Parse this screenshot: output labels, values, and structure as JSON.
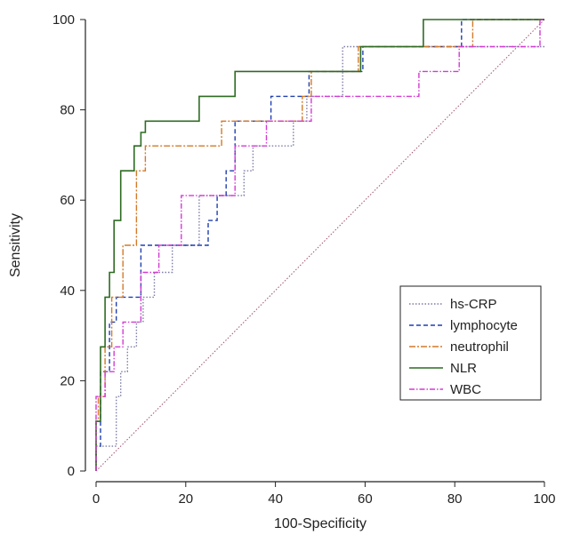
{
  "chart_data": {
    "type": "line",
    "title": "",
    "xlabel": "100-Specificity",
    "ylabel": "Sensitivity",
    "xlim": [
      0,
      100
    ],
    "ylim": [
      0,
      100
    ],
    "xticks": [
      "0",
      "20",
      "40",
      "60",
      "80",
      "100"
    ],
    "yticks": [
      "0",
      "20",
      "40",
      "60",
      "80",
      "100"
    ],
    "grid": false,
    "legend_position": "bottom-right",
    "reference_line": {
      "x": [
        0,
        100
      ],
      "y": [
        0,
        100
      ],
      "color": "#a0506e"
    },
    "series": [
      {
        "name": "hs-CRP",
        "color": "#7c7ca8",
        "dash": "1.5,2",
        "x": [
          0,
          0,
          1.5,
          1.5,
          3.5,
          3.5,
          4.5,
          4.5,
          5.5,
          5.5,
          7,
          7,
          9,
          9,
          10.5,
          10.5,
          13,
          13,
          17,
          17,
          23,
          23,
          29,
          29,
          33,
          33,
          35,
          35,
          38,
          38,
          44,
          44,
          47,
          47,
          55,
          55,
          61,
          61,
          100
        ],
        "y": [
          0,
          5.5,
          5.5,
          5.5,
          5.5,
          5.5,
          5.5,
          16.5,
          16.5,
          22,
          22,
          27.5,
          27.5,
          33,
          33,
          38.5,
          38.5,
          44,
          44,
          50,
          50,
          61,
          61,
          61,
          61,
          66.5,
          66.5,
          72,
          72,
          72,
          72,
          77.5,
          77.5,
          83,
          83,
          94,
          94,
          94,
          94
        ]
      },
      {
        "name": "lymphocyte",
        "color": "#1f3fb0",
        "dash": "5,3",
        "x": [
          0,
          0,
          1,
          1,
          3,
          3,
          4.5,
          4.5,
          10,
          10,
          23,
          23,
          25,
          25,
          27,
          27,
          29,
          29,
          31,
          31,
          39,
          39,
          47.5,
          47.5,
          59.5,
          59.5,
          81.5,
          81.5,
          100
        ],
        "y": [
          0,
          5.5,
          5.5,
          22,
          22,
          33,
          33,
          38.5,
          38.5,
          50,
          50,
          50,
          50,
          55.5,
          55.5,
          61,
          61,
          66.5,
          66.5,
          77.5,
          77.5,
          83,
          83,
          88.5,
          88.5,
          94,
          94,
          100,
          100
        ]
      },
      {
        "name": "neutrophil",
        "color": "#d27a2a",
        "dash": "7,2,2,2",
        "x": [
          0,
          0,
          0.5,
          0.5,
          2,
          2,
          3.5,
          3.5,
          6,
          6,
          9,
          9,
          11,
          11,
          22,
          22,
          28,
          28,
          46,
          46,
          48,
          48,
          58.5,
          58.5,
          84,
          84,
          100
        ],
        "y": [
          0,
          11,
          11,
          16.5,
          16.5,
          27.5,
          27.5,
          38.5,
          38.5,
          50,
          50,
          66.5,
          66.5,
          72,
          72,
          72,
          72,
          77.5,
          77.5,
          83,
          83,
          88.5,
          88.5,
          94,
          94,
          100,
          100
        ]
      },
      {
        "name": "NLR",
        "color": "#2e6b22",
        "dash": "",
        "x": [
          0,
          0,
          1,
          1,
          2,
          2,
          3,
          3,
          4,
          4,
          5.5,
          5.5,
          8.5,
          8.5,
          10,
          10,
          11,
          11,
          12,
          12,
          23,
          23,
          31,
          31,
          48,
          48,
          59,
          59,
          73,
          73,
          100
        ],
        "y": [
          0,
          11,
          11,
          27.5,
          27.5,
          38.5,
          38.5,
          44,
          44,
          55.5,
          55.5,
          66.5,
          66.5,
          72,
          72,
          75,
          75,
          77.5,
          77.5,
          77.5,
          77.5,
          83,
          83,
          88.5,
          88.5,
          88.5,
          88.5,
          94,
          94,
          100,
          100
        ]
      },
      {
        "name": "WBC",
        "color": "#d43ad4",
        "dash": "6,2,1.5,2",
        "x": [
          0,
          0,
          2,
          2,
          4,
          4,
          6,
          6,
          10,
          10,
          14,
          14,
          19,
          19,
          24,
          24,
          31,
          31,
          38,
          38,
          48,
          48,
          72,
          72,
          81,
          81,
          99,
          99,
          100
        ],
        "y": [
          0,
          16.5,
          16.5,
          22,
          22,
          27.5,
          27.5,
          33,
          33,
          44,
          44,
          50,
          50,
          61,
          61,
          61,
          61,
          72,
          72,
          77.5,
          77.5,
          83,
          83,
          88.5,
          88.5,
          94,
          94,
          100,
          100
        ]
      }
    ]
  }
}
